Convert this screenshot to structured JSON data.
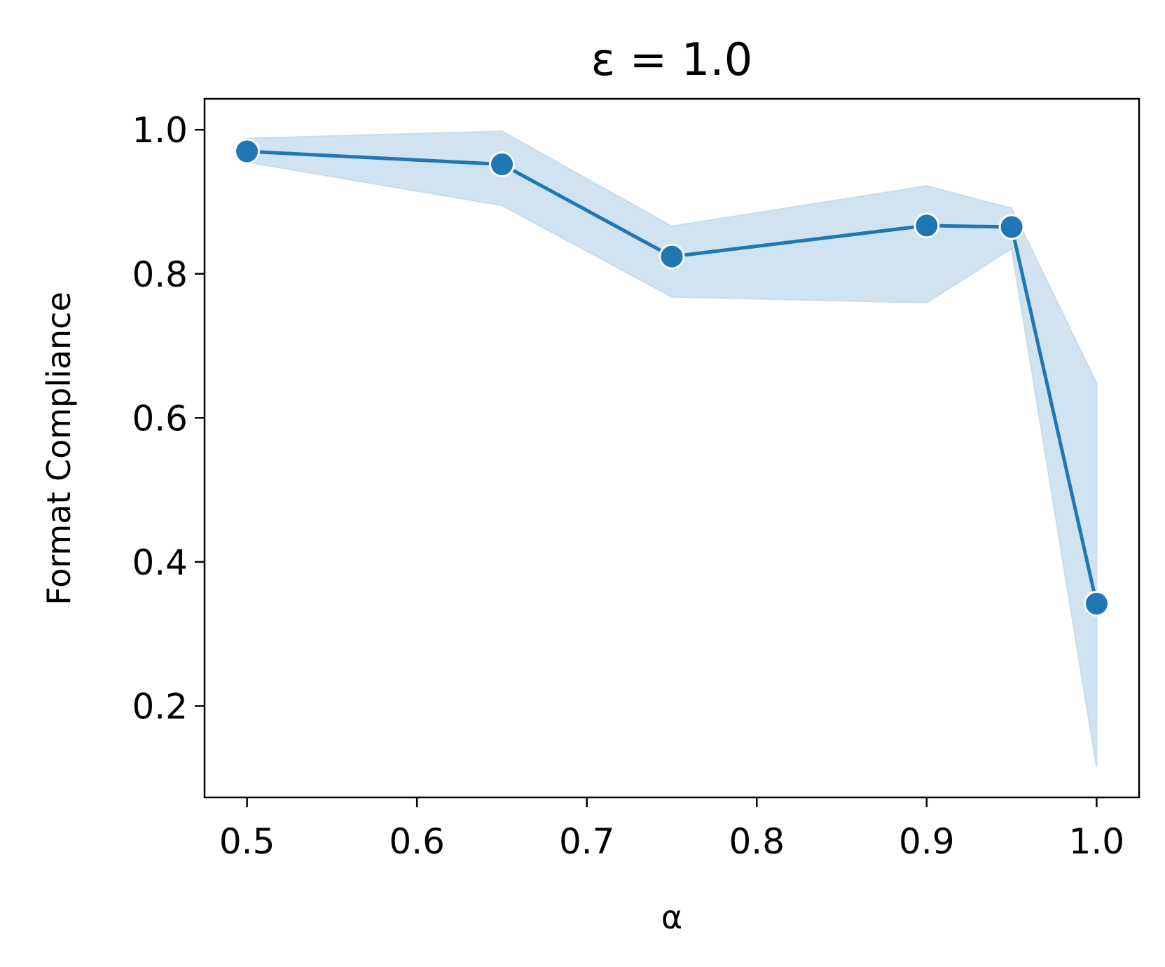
{
  "chart_data": {
    "type": "line",
    "title": "ε = 1.0",
    "xlabel": "α",
    "ylabel": "Format Compliance",
    "xlim": [
      0.475,
      1.025
    ],
    "ylim": [
      0.073,
      1.043
    ],
    "xticks": [
      0.5,
      0.6,
      0.7,
      0.8,
      0.9,
      1.0
    ],
    "xtick_labels": [
      "0.5",
      "0.6",
      "0.7",
      "0.8",
      "0.9",
      "1.0"
    ],
    "yticks": [
      0.2,
      0.4,
      0.6,
      0.8,
      1.0
    ],
    "ytick_labels": [
      "0.2",
      "0.4",
      "0.6",
      "0.8",
      "1.0"
    ],
    "grid": false,
    "series": [
      {
        "x": [
          0.5,
          0.65,
          0.75,
          0.9,
          0.95,
          1.0
        ],
        "y": [
          0.97,
          0.952,
          0.824,
          0.867,
          0.865,
          0.342
        ],
        "ci_lower": [
          0.955,
          0.895,
          0.768,
          0.76,
          0.835,
          0.115
        ],
        "ci_upper": [
          0.988,
          0.998,
          0.866,
          0.922,
          0.891,
          0.648
        ],
        "color": "#1f77b4",
        "band_color": "#c6dcec",
        "marker": "circle"
      }
    ]
  }
}
